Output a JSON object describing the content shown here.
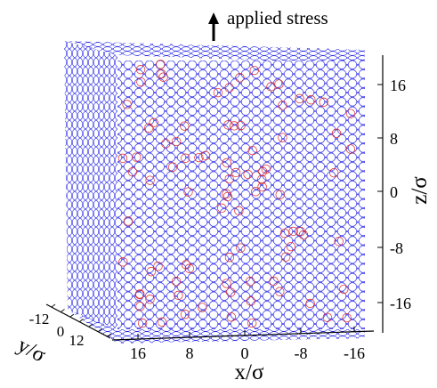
{
  "annotation": {
    "text": "applied stress"
  },
  "colors": {
    "particle_primary": "#2a2ae6",
    "particle_secondary": "#e02020",
    "axis": "#000000",
    "background": "#ffffff"
  },
  "axes": {
    "z": {
      "label": "z/σ",
      "ticks": [
        "16",
        "8",
        "0",
        "-8",
        "-16"
      ]
    },
    "x": {
      "label": "x/σ",
      "ticks": [
        "16",
        "8",
        "0",
        "-8",
        "-16"
      ]
    },
    "y": {
      "label": "y/σ",
      "ticks": [
        "-12",
        "0",
        "12"
      ]
    }
  }
}
